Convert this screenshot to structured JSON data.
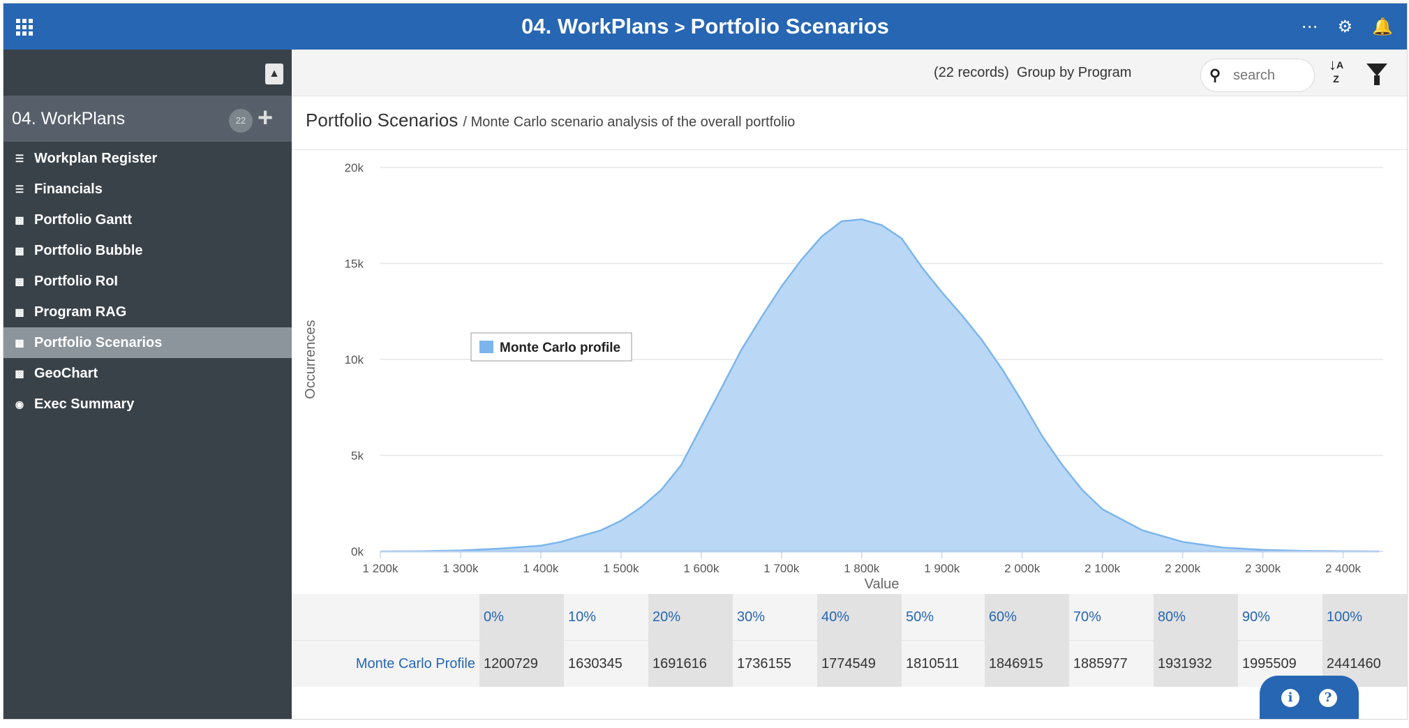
{
  "header": {
    "workspace": "04. WorkPlans",
    "separator": ">",
    "page": "Portfolio Scenarios",
    "more_icon": "ellipsis-icon",
    "settings_icon": "gear-icon",
    "notifications_icon": "bell-icon"
  },
  "sidebar": {
    "workspace_title": "04. WorkPlans",
    "workspace_count": "22",
    "items": [
      {
        "label": "Workplan Register",
        "icon": "list-icon"
      },
      {
        "label": "Financials",
        "icon": "list-icon"
      },
      {
        "label": "Portfolio Gantt",
        "icon": "bar-chart-icon"
      },
      {
        "label": "Portfolio Bubble",
        "icon": "bar-chart-icon"
      },
      {
        "label": "Portfolio RoI",
        "icon": "bar-chart-icon"
      },
      {
        "label": "Program RAG",
        "icon": "bar-chart-icon"
      },
      {
        "label": "Portfolio Scenarios",
        "icon": "bar-chart-icon",
        "active": true
      },
      {
        "label": "GeoChart",
        "icon": "bar-chart-icon"
      },
      {
        "label": "Exec Summary",
        "icon": "dashboard-icon"
      }
    ]
  },
  "toolbar": {
    "records": "(22 records)",
    "group_by": "Group by Program",
    "search_placeholder": "search"
  },
  "content": {
    "title": "Portfolio Scenarios",
    "subtitle": "/ Monte Carlo scenario analysis of the overall portfolio"
  },
  "chart_data": {
    "type": "area",
    "xlabel": "Value",
    "ylabel": "Occurrences",
    "xlim": [
      1200000,
      2450000
    ],
    "ylim": [
      0,
      20000
    ],
    "x_ticks": [
      "1 200k",
      "1 300k",
      "1 400k",
      "1 500k",
      "1 600k",
      "1 700k",
      "1 800k",
      "1 900k",
      "2 000k",
      "2 100k",
      "2 200k",
      "2 300k",
      "2 400k"
    ],
    "y_ticks": [
      "0k",
      "5k",
      "10k",
      "15k",
      "20k"
    ],
    "grid": true,
    "legend_position": "center-left",
    "color": "#7cb5ec",
    "series": [
      {
        "name": "Monte Carlo profile",
        "x": [
          1200000,
          1250000,
          1300000,
          1350000,
          1400000,
          1425000,
          1450000,
          1475000,
          1500000,
          1525000,
          1550000,
          1575000,
          1600000,
          1625000,
          1650000,
          1675000,
          1700000,
          1725000,
          1750000,
          1775000,
          1800000,
          1825000,
          1850000,
          1875000,
          1900000,
          1925000,
          1950000,
          1975000,
          2000000,
          2025000,
          2050000,
          2075000,
          2100000,
          2150000,
          2200000,
          2250000,
          2300000,
          2350000,
          2400000,
          2445000
        ],
        "y": [
          0,
          10,
          50,
          150,
          300,
          500,
          800,
          1100,
          1600,
          2300,
          3200,
          4500,
          6500,
          8500,
          10500,
          12200,
          13800,
          15200,
          16400,
          17200,
          17300,
          17000,
          16300,
          14800,
          13500,
          12300,
          11000,
          9500,
          7800,
          6000,
          4500,
          3200,
          2200,
          1100,
          500,
          200,
          80,
          30,
          10,
          0
        ]
      }
    ]
  },
  "percentile_table": {
    "headers": [
      "0%",
      "10%",
      "20%",
      "30%",
      "40%",
      "50%",
      "60%",
      "70%",
      "80%",
      "90%",
      "100%"
    ],
    "row_label": "Monte Carlo Profile",
    "values": [
      "1200729",
      "1630345",
      "1691616",
      "1736155",
      "1774549",
      "1810511",
      "1846915",
      "1885977",
      "1931932",
      "1995509",
      "2441460"
    ]
  },
  "help": {
    "info_icon": "info-icon",
    "help_icon": "question-icon"
  }
}
